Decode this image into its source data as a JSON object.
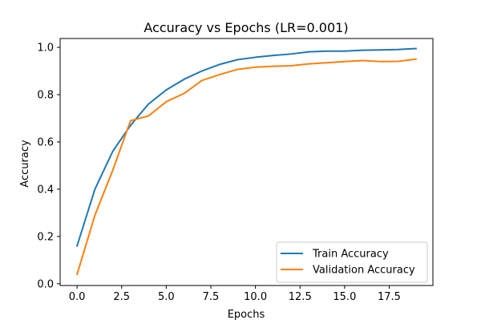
{
  "chart_data": {
    "type": "line",
    "title": "Accuracy vs Epochs (LR=0.001)",
    "xlabel": "Epochs",
    "ylabel": "Accuracy",
    "xlim": [
      -0.95,
      19.95
    ],
    "ylim": [
      -0.0075,
      1.0375
    ],
    "xticks": [
      0.0,
      2.5,
      5.0,
      7.5,
      10.0,
      12.5,
      15.0,
      17.5
    ],
    "xtick_labels": [
      "0.0",
      "2.5",
      "5.0",
      "7.5",
      "10.0",
      "12.5",
      "15.0",
      "17.5"
    ],
    "yticks": [
      0.0,
      0.2,
      0.4,
      0.6,
      0.8,
      1.0
    ],
    "ytick_labels": [
      "0.0",
      "0.2",
      "0.4",
      "0.6",
      "0.8",
      "1.0"
    ],
    "grid": false,
    "legend_position": "lower-right",
    "x": [
      0,
      1,
      2,
      3,
      4,
      5,
      6,
      7,
      8,
      9,
      10,
      11,
      12,
      13,
      14,
      15,
      16,
      17,
      18,
      19
    ],
    "series": [
      {
        "name": "Train Accuracy",
        "color": "#1f77b4",
        "values": [
          0.16,
          0.4,
          0.56,
          0.67,
          0.76,
          0.82,
          0.865,
          0.9,
          0.928,
          0.948,
          0.958,
          0.966,
          0.972,
          0.981,
          0.984,
          0.984,
          0.988,
          0.989,
          0.991,
          0.995
        ]
      },
      {
        "name": "Validation Accuracy",
        "color": "#ff7f0e",
        "values": [
          0.04,
          0.29,
          0.48,
          0.69,
          0.71,
          0.77,
          0.805,
          0.86,
          0.885,
          0.907,
          0.916,
          0.92,
          0.922,
          0.93,
          0.935,
          0.94,
          0.944,
          0.94,
          0.941,
          0.95
        ]
      }
    ]
  }
}
